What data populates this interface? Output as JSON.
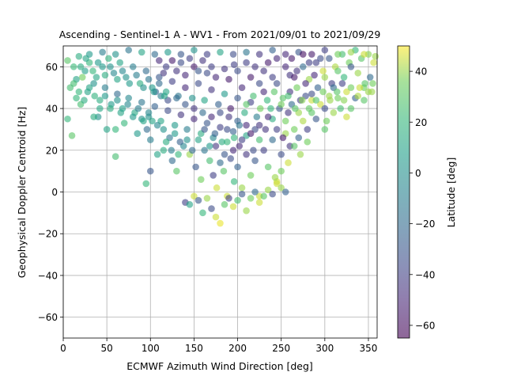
{
  "chart_data": {
    "type": "scatter",
    "title": "Ascending - Sentinel-1 A - WV1 - From 2021/09/01 to 2021/09/29",
    "xlabel": "ECMWF Azimuth Wind Direction [deg]",
    "ylabel": "Geophysical Doppler Centroid [Hz]",
    "xlim": [
      0,
      360
    ],
    "ylim": [
      -70,
      70
    ],
    "x_ticks": [
      "0",
      "50",
      "100",
      "150",
      "200",
      "250",
      "300",
      "350"
    ],
    "y_ticks": [
      "-60",
      "-40",
      "-20",
      "0",
      "20",
      "40",
      "60"
    ],
    "grid": true,
    "point_alpha": 0.6,
    "colorbar": {
      "label": "Latitude [deg]",
      "range": [
        -65,
        50
      ],
      "ticks": [
        "-60",
        "-40",
        "-20",
        "0",
        "20",
        "40"
      ],
      "colormap": "viridis"
    },
    "points": [
      [
        5,
        63,
        30
      ],
      [
        12,
        60,
        22
      ],
      [
        18,
        65,
        15
      ],
      [
        25,
        58,
        8
      ],
      [
        30,
        62,
        20
      ],
      [
        38,
        55,
        12
      ],
      [
        45,
        60,
        5
      ],
      [
        52,
        64,
        18
      ],
      [
        58,
        57,
        -5
      ],
      [
        65,
        62,
        10
      ],
      [
        72,
        55,
        0
      ],
      [
        80,
        60,
        -10
      ],
      [
        88,
        52,
        15
      ],
      [
        95,
        58,
        -20
      ],
      [
        102,
        50,
        5
      ],
      [
        110,
        55,
        -30
      ],
      [
        118,
        48,
        10
      ],
      [
        125,
        53,
        -40
      ],
      [
        132,
        46,
        -15
      ],
      [
        140,
        50,
        -50
      ],
      [
        148,
        45,
        0
      ],
      [
        155,
        52,
        -35
      ],
      [
        162,
        44,
        10
      ],
      [
        170,
        49,
        -45
      ],
      [
        178,
        42,
        -25
      ],
      [
        185,
        47,
        5
      ],
      [
        192,
        40,
        -55
      ],
      [
        200,
        45,
        -30
      ],
      [
        208,
        38,
        15
      ],
      [
        215,
        43,
        -40
      ],
      [
        222,
        36,
        -10
      ],
      [
        230,
        48,
        -50
      ],
      [
        238,
        40,
        20
      ],
      [
        245,
        52,
        -35
      ],
      [
        252,
        45,
        30
      ],
      [
        260,
        56,
        -45
      ],
      [
        268,
        50,
        35
      ],
      [
        275,
        60,
        -20
      ],
      [
        282,
        54,
        40
      ],
      [
        290,
        62,
        -40
      ],
      [
        298,
        58,
        45
      ],
      [
        305,
        64,
        -30
      ],
      [
        312,
        60,
        42
      ],
      [
        320,
        66,
        25
      ],
      [
        328,
        62,
        35
      ],
      [
        335,
        68,
        20
      ],
      [
        342,
        64,
        30
      ],
      [
        350,
        66,
        38
      ],
      [
        356,
        62,
        45
      ],
      [
        8,
        50,
        25
      ],
      [
        15,
        45,
        20
      ],
      [
        22,
        55,
        35
      ],
      [
        28,
        48,
        10
      ],
      [
        35,
        52,
        0
      ],
      [
        42,
        44,
        15
      ],
      [
        48,
        50,
        -10
      ],
      [
        55,
        42,
        5
      ],
      [
        62,
        47,
        -20
      ],
      [
        68,
        40,
        8
      ],
      [
        75,
        45,
        -5
      ],
      [
        82,
        38,
        12
      ],
      [
        90,
        43,
        -15
      ],
      [
        98,
        36,
        0
      ],
      [
        105,
        41,
        -25
      ],
      [
        112,
        34,
        10
      ],
      [
        120,
        39,
        -35
      ],
      [
        128,
        32,
        5
      ],
      [
        135,
        37,
        -45
      ],
      [
        142,
        30,
        -10
      ],
      [
        150,
        35,
        -50
      ],
      [
        158,
        28,
        15
      ],
      [
        165,
        33,
        -30
      ],
      [
        172,
        26,
        -5
      ],
      [
        180,
        31,
        -40
      ],
      [
        188,
        24,
        20
      ],
      [
        195,
        29,
        -25
      ],
      [
        202,
        22,
        -50
      ],
      [
        210,
        27,
        10
      ],
      [
        218,
        20,
        -35
      ],
      [
        225,
        25,
        25
      ],
      [
        232,
        30,
        -45
      ],
      [
        240,
        35,
        15
      ],
      [
        248,
        40,
        -30
      ],
      [
        255,
        34,
        35
      ],
      [
        262,
        42,
        -20
      ],
      [
        270,
        38,
        40
      ],
      [
        278,
        46,
        -35
      ],
      [
        285,
        44,
        45
      ],
      [
        292,
        50,
        -25
      ],
      [
        300,
        55,
        40
      ],
      [
        308,
        52,
        -40
      ],
      [
        315,
        58,
        30
      ],
      [
        322,
        55,
        20
      ],
      [
        330,
        60,
        -30
      ],
      [
        338,
        57,
        40
      ],
      [
        345,
        50,
        35
      ],
      [
        352,
        55,
        -20
      ],
      [
        40,
        36,
        0
      ],
      [
        60,
        30,
        20
      ],
      [
        85,
        28,
        5
      ],
      [
        100,
        25,
        -10
      ],
      [
        115,
        20,
        15
      ],
      [
        125,
        15,
        -20
      ],
      [
        130,
        10,
        30
      ],
      [
        138,
        22,
        -5
      ],
      [
        145,
        18,
        40
      ],
      [
        152,
        12,
        -30
      ],
      [
        158,
        6,
        35
      ],
      [
        162,
        20,
        -15
      ],
      [
        168,
        15,
        25
      ],
      [
        172,
        8,
        -40
      ],
      [
        176,
        2,
        45
      ],
      [
        180,
        14,
        -20
      ],
      [
        184,
        10,
        30
      ],
      [
        188,
        -2,
        45
      ],
      [
        192,
        16,
        -35
      ],
      [
        196,
        5,
        20
      ],
      [
        200,
        12,
        -25
      ],
      [
        205,
        2,
        40
      ],
      [
        210,
        18,
        -45
      ],
      [
        215,
        8,
        35
      ],
      [
        220,
        15,
        -30
      ],
      [
        225,
        -2,
        45
      ],
      [
        230,
        20,
        -40
      ],
      [
        235,
        12,
        30
      ],
      [
        240,
        25,
        -20
      ],
      [
        245,
        5,
        45
      ],
      [
        250,
        18,
        -35
      ],
      [
        255,
        28,
        40
      ],
      [
        260,
        22,
        -45
      ],
      [
        265,
        30,
        35
      ],
      [
        270,
        26,
        -25
      ],
      [
        275,
        34,
        42
      ],
      [
        280,
        30,
        -40
      ],
      [
        285,
        38,
        30
      ],
      [
        290,
        35,
        -30
      ],
      [
        295,
        42,
        45
      ],
      [
        300,
        40,
        -35
      ],
      [
        305,
        46,
        40
      ],
      [
        310,
        50,
        -20
      ],
      [
        315,
        45,
        35
      ],
      [
        320,
        52,
        -40
      ],
      [
        325,
        48,
        45
      ],
      [
        330,
        40,
        30
      ],
      [
        335,
        45,
        -25
      ],
      [
        340,
        50,
        45
      ],
      [
        345,
        44,
        30
      ],
      [
        350,
        48,
        40
      ],
      [
        355,
        52,
        35
      ],
      [
        140,
        -5,
        -40
      ],
      [
        145,
        -6,
        10
      ],
      [
        150,
        -2,
        45
      ],
      [
        155,
        -4,
        -30
      ],
      [
        160,
        -10,
        20
      ],
      [
        165,
        -3,
        40
      ],
      [
        170,
        -8,
        -35
      ],
      [
        175,
        -12,
        45
      ],
      [
        180,
        -15,
        48
      ],
      [
        185,
        -6,
        30
      ],
      [
        190,
        -3,
        -40
      ],
      [
        195,
        -7,
        45
      ],
      [
        200,
        -4,
        25
      ],
      [
        205,
        -1,
        -30
      ],
      [
        210,
        -9,
        40
      ],
      [
        215,
        -3,
        35
      ],
      [
        220,
        0,
        -20
      ],
      [
        225,
        -5,
        45
      ],
      [
        230,
        -2,
        30
      ],
      [
        235,
        1,
        40
      ],
      [
        240,
        -1,
        -35
      ],
      [
        245,
        4,
        45
      ],
      [
        250,
        2,
        40
      ],
      [
        255,
        0,
        -25
      ],
      [
        95,
        4,
        20
      ],
      [
        100,
        10,
        -30
      ],
      [
        108,
        18,
        10
      ],
      [
        60,
        17,
        25
      ],
      [
        10,
        27,
        30
      ],
      [
        35,
        36,
        15
      ],
      [
        50,
        30,
        10
      ],
      [
        70,
        33,
        20
      ],
      [
        90,
        35,
        0
      ],
      [
        20,
        42,
        25
      ],
      [
        5,
        35,
        20
      ],
      [
        15,
        54,
        10
      ],
      [
        30,
        66,
        5
      ],
      [
        45,
        67,
        -10
      ],
      [
        60,
        66,
        0
      ],
      [
        75,
        68,
        -15
      ],
      [
        90,
        67,
        10
      ],
      [
        105,
        66,
        -20
      ],
      [
        120,
        67,
        5
      ],
      [
        135,
        66,
        -30
      ],
      [
        150,
        68,
        0
      ],
      [
        165,
        66,
        -40
      ],
      [
        180,
        67,
        10
      ],
      [
        195,
        66,
        -35
      ],
      [
        210,
        67,
        -15
      ],
      [
        225,
        66,
        -45
      ],
      [
        240,
        68,
        -25
      ],
      [
        255,
        66,
        -50
      ],
      [
        270,
        67,
        -30
      ],
      [
        285,
        66,
        -55
      ],
      [
        300,
        68,
        -40
      ],
      [
        315,
        66,
        35
      ],
      [
        330,
        67,
        40
      ],
      [
        345,
        66,
        45
      ],
      [
        358,
        65,
        40
      ],
      [
        255,
        60,
        -50
      ],
      [
        262,
        64,
        -55
      ],
      [
        268,
        58,
        -45
      ],
      [
        275,
        66,
        -60
      ],
      [
        282,
        62,
        -40
      ],
      [
        288,
        56,
        -50
      ],
      [
        295,
        64,
        -35
      ],
      [
        260,
        48,
        -45
      ],
      [
        265,
        55,
        -55
      ],
      [
        272,
        44,
        -40
      ],
      [
        278,
        52,
        -50
      ],
      [
        285,
        47,
        -35
      ],
      [
        230,
        58,
        -45
      ],
      [
        235,
        62,
        -55
      ],
      [
        240,
        55,
        -40
      ],
      [
        245,
        64,
        -50
      ],
      [
        225,
        52,
        -35
      ],
      [
        220,
        60,
        -45
      ],
      [
        215,
        55,
        -55
      ],
      [
        210,
        62,
        -40
      ],
      [
        205,
        50,
        -50
      ],
      [
        200,
        58,
        -35
      ],
      [
        118,
        60,
        -40
      ],
      [
        125,
        63,
        -55
      ],
      [
        130,
        58,
        -45
      ],
      [
        135,
        62,
        -35
      ],
      [
        140,
        56,
        -50
      ],
      [
        145,
        64,
        -40
      ],
      [
        150,
        60,
        -55
      ],
      [
        155,
        58,
        -30
      ],
      [
        160,
        63,
        -45
      ],
      [
        165,
        57,
        -35
      ],
      [
        110,
        63,
        -50
      ],
      [
        115,
        57,
        -45
      ],
      [
        170,
        60,
        -40
      ],
      [
        175,
        55,
        -50
      ],
      [
        185,
        59,
        -45
      ],
      [
        190,
        54,
        -55
      ],
      [
        196,
        61,
        -40
      ],
      [
        140,
        42,
        -30
      ],
      [
        150,
        40,
        -45
      ],
      [
        160,
        38,
        -20
      ],
      [
        170,
        36,
        -50
      ],
      [
        180,
        38,
        -35
      ],
      [
        190,
        36,
        -45
      ],
      [
        200,
        34,
        -25
      ],
      [
        210,
        32,
        -50
      ],
      [
        220,
        30,
        -35
      ],
      [
        130,
        45,
        -20
      ],
      [
        120,
        44,
        -35
      ],
      [
        112,
        46,
        -10
      ],
      [
        106,
        48,
        -25
      ],
      [
        175,
        22,
        -45
      ],
      [
        185,
        18,
        -30
      ],
      [
        195,
        20,
        -50
      ],
      [
        205,
        25,
        -40
      ],
      [
        215,
        28,
        -55
      ],
      [
        225,
        32,
        -45
      ],
      [
        235,
        36,
        -50
      ],
      [
        245,
        30,
        -40
      ],
      [
        252,
        26,
        -55
      ],
      [
        258,
        38,
        -45
      ],
      [
        142,
        25,
        0
      ],
      [
        148,
        20,
        -20
      ],
      [
        155,
        25,
        10
      ],
      [
        162,
        30,
        -30
      ],
      [
        168,
        22,
        5
      ],
      [
        174,
        28,
        -25
      ],
      [
        182,
        24,
        15
      ],
      [
        188,
        30,
        -35
      ],
      [
        196,
        26,
        20
      ],
      [
        202,
        32,
        -15
      ],
      [
        115,
        30,
        0
      ],
      [
        122,
        26,
        -15
      ],
      [
        128,
        28,
        5
      ],
      [
        134,
        24,
        -25
      ],
      [
        108,
        32,
        -5
      ],
      [
        102,
        34,
        10
      ],
      [
        96,
        30,
        -20
      ],
      [
        118,
        24,
        15
      ],
      [
        124,
        20,
        -10
      ],
      [
        132,
        18,
        20
      ],
      [
        210,
        42,
        30
      ],
      [
        218,
        46,
        25
      ],
      [
        226,
        40,
        35
      ],
      [
        234,
        44,
        20
      ],
      [
        242,
        48,
        30
      ],
      [
        250,
        42,
        35
      ],
      [
        258,
        46,
        25
      ],
      [
        266,
        40,
        30
      ],
      [
        274,
        44,
        38
      ],
      [
        282,
        40,
        32
      ],
      [
        290,
        44,
        28
      ],
      [
        298,
        48,
        35
      ],
      [
        306,
        44,
        40
      ],
      [
        314,
        48,
        30
      ],
      [
        322,
        44,
        38
      ],
      [
        330,
        50,
        35
      ],
      [
        338,
        46,
        42
      ],
      [
        346,
        52,
        30
      ],
      [
        354,
        48,
        40
      ],
      [
        300,
        30,
        30
      ],
      [
        302,
        34,
        35
      ],
      [
        310,
        38,
        40
      ],
      [
        318,
        40,
        25
      ],
      [
        325,
        36,
        45
      ],
      [
        280,
        24,
        35
      ],
      [
        272,
        18,
        40
      ],
      [
        265,
        22,
        30
      ],
      [
        258,
        14,
        45
      ],
      [
        250,
        10,
        35
      ],
      [
        243,
        7,
        40
      ],
      [
        20,
        60,
        15
      ],
      [
        26,
        64,
        10
      ],
      [
        34,
        58,
        20
      ],
      [
        40,
        62,
        5
      ],
      [
        48,
        56,
        15
      ],
      [
        54,
        60,
        0
      ],
      [
        62,
        54,
        10
      ],
      [
        68,
        58,
        -5
      ],
      [
        76,
        52,
        5
      ],
      [
        84,
        56,
        -10
      ],
      [
        92,
        50,
        0
      ],
      [
        98,
        54,
        -15
      ],
      [
        104,
        48,
        5
      ],
      [
        110,
        52,
        -20
      ],
      [
        116,
        46,
        10
      ],
      [
        12,
        52,
        25
      ],
      [
        18,
        48,
        20
      ],
      [
        24,
        44,
        15
      ],
      [
        30,
        50,
        10
      ],
      [
        36,
        46,
        18
      ],
      [
        42,
        40,
        12
      ],
      [
        48,
        46,
        5
      ],
      [
        54,
        40,
        15
      ],
      [
        62,
        44,
        0
      ],
      [
        66,
        38,
        10
      ],
      [
        74,
        42,
        -5
      ],
      [
        80,
        36,
        5
      ],
      [
        86,
        40,
        -10
      ],
      [
        92,
        34,
        10
      ],
      [
        98,
        38,
        -5
      ]
    ]
  }
}
